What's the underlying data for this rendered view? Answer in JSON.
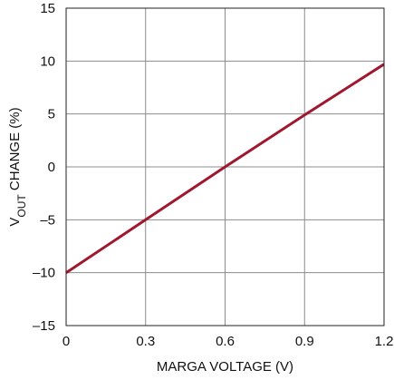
{
  "chart_data": {
    "type": "line",
    "title": "",
    "xlabel": "MARGA VOLTAGE (V)",
    "ylabel": {
      "main": "V",
      "subscript": "OUT",
      "rest": " CHANGE (%)"
    },
    "xlim": [
      0,
      1.2
    ],
    "ylim": [
      -15,
      15
    ],
    "x_ticks": [
      {
        "value": 0,
        "label": "0"
      },
      {
        "value": 0.3,
        "label": "0.3"
      },
      {
        "value": 0.6,
        "label": "0.6"
      },
      {
        "value": 0.9,
        "label": "0.9"
      },
      {
        "value": 1.2,
        "label": "1.2"
      }
    ],
    "y_ticks": [
      {
        "value": 15,
        "label": "15"
      },
      {
        "value": 10,
        "label": "10"
      },
      {
        "value": 5,
        "label": "5"
      },
      {
        "value": 0,
        "label": "0"
      },
      {
        "value": -5,
        "label": "–5"
      },
      {
        "value": -10,
        "label": "–10"
      },
      {
        "value": -15,
        "label": "–15"
      }
    ],
    "grid": true,
    "series": [
      {
        "color": "#a0182f",
        "x": [
          0,
          0.3,
          0.6,
          0.9,
          1.2
        ],
        "y": [
          -10,
          -5,
          0,
          4.9,
          9.7
        ]
      }
    ]
  }
}
